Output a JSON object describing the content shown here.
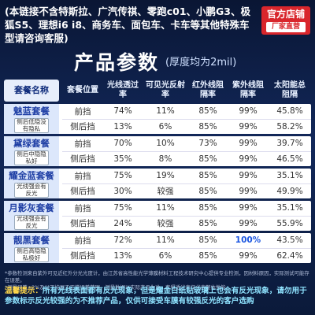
{
  "header": {
    "notice": "(本链接不含特斯拉、广汽传祺、零跑c01、小鹏G3、极狐S5、理想i6 i8、商务车、面包车、卡车等其他特殊车型请咨询客服)"
  },
  "badge": {
    "title": "官方店铺",
    "subtitle": "厂家直营"
  },
  "title": "产品参数",
  "subtitle": "(厚度均为2mil)",
  "table": {
    "columns": [
      "套餐名称",
      "套餐位置",
      "光线透过率",
      "可见光反射率",
      "红外线阻隔率",
      "紫外线阻隔率",
      "太阳能总阻隔"
    ],
    "groups": [
      {
        "name": "魅蓝套餐",
        "note": "侧后低隐没有隐私",
        "rows": [
          [
            "前挡",
            "74%",
            "11%",
            "85%",
            "99%",
            "45.8%"
          ],
          [
            "侧后挡",
            "13%",
            "6%",
            "85%",
            "99%",
            "58.2%"
          ]
        ]
      },
      {
        "name": "黛绿套餐",
        "note": "侧后中隐隐私好",
        "rows": [
          [
            "前挡",
            "70%",
            "10%",
            "73%",
            "99%",
            "39.7%"
          ],
          [
            "侧后挡",
            "35%",
            "8%",
            "85%",
            "99%",
            "46.5%"
          ]
        ]
      },
      {
        "name": "耀金蓝套餐",
        "note": "光线强会有反光",
        "rows": [
          [
            "前挡",
            "75%",
            "19%",
            "85%",
            "99%",
            "35.1%"
          ],
          [
            "侧后挡",
            "30%",
            "较强",
            "85%",
            "99%",
            "49.9%"
          ]
        ]
      },
      {
        "name": "月影灰套餐",
        "note": "光线强会有反光",
        "rows": [
          [
            "前挡",
            "75%",
            "11%",
            "85%",
            "99%",
            "35.1%"
          ],
          [
            "侧后挡",
            "24%",
            "较强",
            "85%",
            "99%",
            "55.9%"
          ]
        ]
      },
      {
        "name": "靓黑套餐",
        "note": "侧后高隐隐私极好",
        "rows": [
          [
            "前挡",
            "72%",
            "11%",
            "85%",
            "100%",
            "43.5%"
          ],
          [
            "侧后挡",
            "13%",
            "6%",
            "85%",
            "99%",
            "62.4%"
          ]
        ]
      }
    ]
  },
  "footnotes": [
    "*参数检测来自紫外可见近红外分光光度计，由江苏省高性能光学薄膜材料工程技术研究中心提供专业检测，因材料原因，实际测试可能存在误差。",
    "*测量误差±2%及以下均属于正常误差范围，测量数据以实际产品为准，套餐透光率仅代表整体性能。"
  ],
  "tip": {
    "label": "温馨提示：",
    "text": "所有光线表面都有反光现象，但是耀金白纸贴玻璃上也会有反光现象，请勿用于",
    "text2": "参数标示反光较强的为不推荐产品，仅供可接受车膜有较强反光的客户选购"
  }
}
